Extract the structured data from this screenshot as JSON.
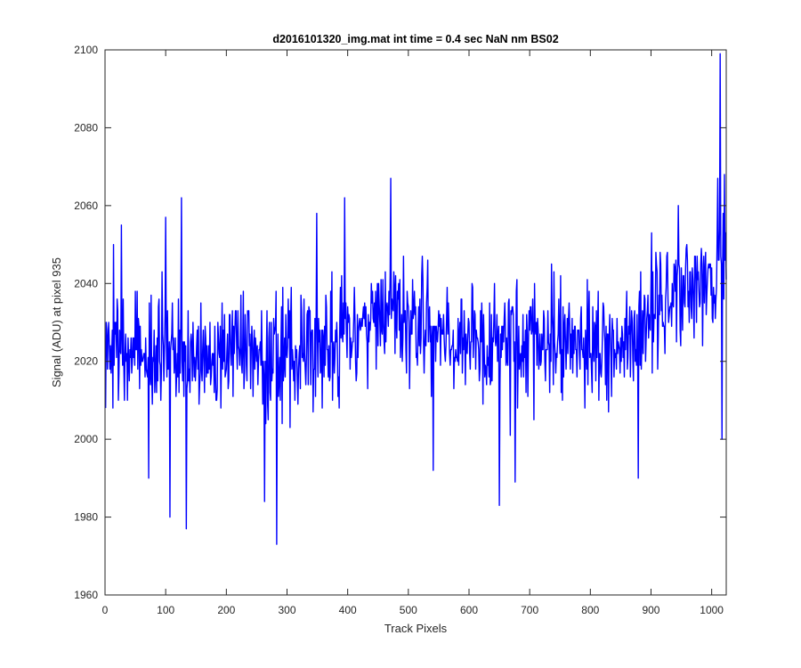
{
  "chart_data": {
    "type": "line",
    "title": "d2016101320_img.mat int time = 0.4 sec  NaN nm BS02",
    "xlabel": "Track Pixels",
    "ylabel": "Signal (ADU) at pixel 935",
    "xlim": [
      0,
      1024
    ],
    "ylim": [
      1960,
      2100
    ],
    "x_ticks": [
      0,
      100,
      200,
      300,
      400,
      500,
      600,
      700,
      800,
      900,
      1000
    ],
    "y_ticks": [
      1960,
      1980,
      2000,
      2020,
      2040,
      2060,
      2080,
      2100
    ],
    "grid": false,
    "legend": "none",
    "series": [
      {
        "color": "#0000ff",
        "x_start": 1,
        "x_step": 1,
        "baseline_knots": [
          [
            0,
            2024
          ],
          [
            100,
            2022
          ],
          [
            200,
            2023
          ],
          [
            300,
            2022
          ],
          [
            400,
            2027
          ],
          [
            470,
            2032
          ],
          [
            520,
            2030
          ],
          [
            600,
            2026
          ],
          [
            700,
            2024
          ],
          [
            800,
            2025
          ],
          [
            850,
            2024
          ],
          [
            900,
            2032
          ],
          [
            950,
            2038
          ],
          [
            1000,
            2042
          ],
          [
            1024,
            2043
          ]
        ],
        "noise_sd": 10,
        "notable_points": [
          [
            14,
            2050
          ],
          [
            27,
            2055
          ],
          [
            72,
            1990
          ],
          [
            100,
            2057
          ],
          [
            107,
            1980
          ],
          [
            126,
            2062
          ],
          [
            134,
            1977
          ],
          [
            263,
            1984
          ],
          [
            283,
            1973
          ],
          [
            349,
            2058
          ],
          [
            395,
            2062
          ],
          [
            471,
            2067
          ],
          [
            541,
            1992
          ],
          [
            650,
            1983
          ],
          [
            676,
            1989
          ],
          [
            879,
            1990
          ],
          [
            1010,
            2067
          ],
          [
            1014,
            2099
          ],
          [
            1017,
            2000
          ],
          [
            1021,
            2068
          ]
        ]
      }
    ]
  }
}
